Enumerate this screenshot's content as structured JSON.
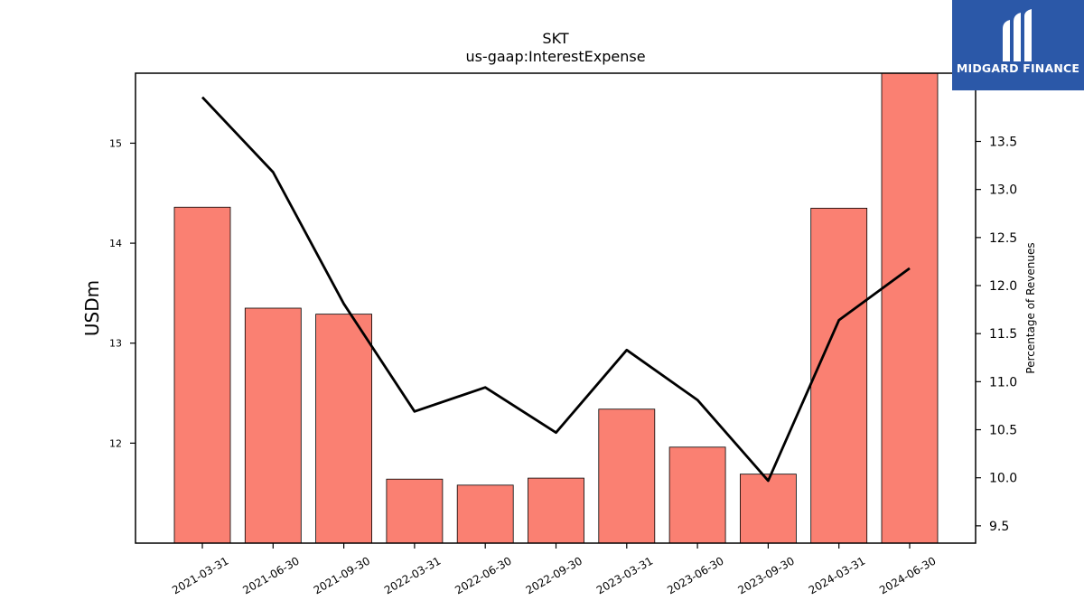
{
  "chart_data": {
    "type": "bar",
    "title": "SKT",
    "subtitle": "us-gaap:InterestExpense",
    "categories": [
      "2021-03-31",
      "2021-06-30",
      "2021-09-30",
      "2022-03-31",
      "2022-06-30",
      "2022-09-30",
      "2023-03-31",
      "2023-06-30",
      "2023-09-30",
      "2024-03-31",
      "2024-06-30"
    ],
    "series": [
      {
        "type": "bar",
        "axis": "left",
        "color": "#fa8072",
        "values": [
          14.36,
          13.35,
          13.29,
          11.64,
          11.58,
          11.65,
          12.34,
          11.96,
          11.69,
          14.35,
          15.72
        ]
      },
      {
        "type": "line",
        "axis": "right",
        "color": "#000000",
        "values": [
          13.96,
          13.18,
          11.81,
          10.69,
          10.94,
          10.47,
          11.33,
          10.81,
          9.97,
          11.64,
          12.18
        ]
      }
    ],
    "ylabel_left": "USDm",
    "ylabel_right": "Percentage of Revenues",
    "ylim_left": [
      11.0,
      15.7
    ],
    "ylim_right": [
      9.32,
      14.21
    ],
    "yticks_left": [
      12,
      13,
      14,
      15
    ],
    "yticks_right": [
      9.5,
      10.0,
      10.5,
      11.0,
      11.5,
      12.0,
      12.5,
      13.0,
      13.5
    ],
    "grid": false,
    "legend": "none"
  },
  "logo": {
    "text": "MIDGARD FINANCE"
  }
}
